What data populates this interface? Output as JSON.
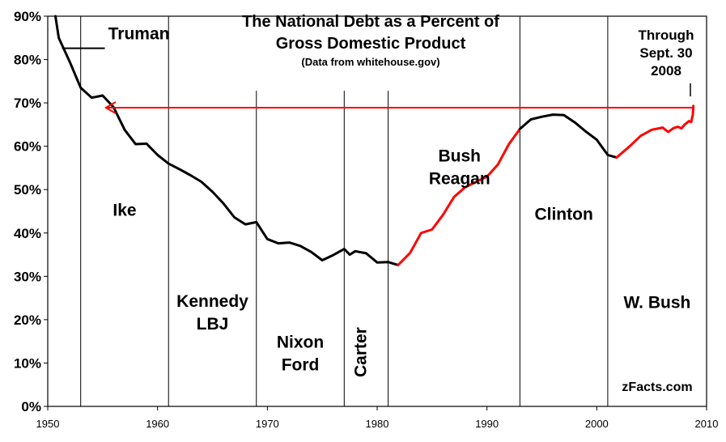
{
  "chart_data": {
    "type": "line",
    "title_lines": [
      "The National Debt as a Percent of",
      "Gross Domestic Product"
    ],
    "subtitle": "(Data from whitehouse.gov)",
    "xlim": [
      1950,
      2010
    ],
    "ylim": [
      0,
      90
    ],
    "x_ticks": [
      1950,
      1960,
      1970,
      1980,
      1990,
      2000,
      2010
    ],
    "y_ticks": [
      0,
      10,
      20,
      30,
      40,
      50,
      60,
      70,
      80,
      90
    ],
    "y_tick_labels": [
      "0%",
      "10%",
      "20%",
      "30%",
      "40%",
      "50%",
      "60%",
      "70%",
      "80%",
      "90%"
    ],
    "term_boundaries": [
      1953,
      1961,
      1969,
      1977,
      1981,
      1993,
      2001
    ],
    "series": [
      {
        "color": "#000000",
        "points": [
          [
            1950.7,
            90.0
          ],
          [
            1951,
            85.0
          ],
          [
            1952,
            79.5
          ],
          [
            1953,
            73.5
          ],
          [
            1954,
            71.2
          ],
          [
            1955,
            71.7
          ],
          [
            1956,
            69.0
          ],
          [
            1957,
            63.8
          ],
          [
            1958,
            60.5
          ],
          [
            1959,
            60.6
          ],
          [
            1960,
            58.0
          ],
          [
            1961,
            56.0
          ],
          [
            1962,
            54.7
          ],
          [
            1963,
            53.3
          ],
          [
            1964,
            51.8
          ],
          [
            1965,
            49.5
          ],
          [
            1966,
            46.8
          ],
          [
            1967,
            43.6
          ],
          [
            1968,
            42.0
          ],
          [
            1969,
            42.5
          ],
          [
            1970,
            38.6
          ],
          [
            1971,
            37.6
          ],
          [
            1972,
            37.8
          ],
          [
            1973,
            37.0
          ],
          [
            1974,
            35.6
          ],
          [
            1975,
            33.7
          ],
          [
            1976,
            34.9
          ],
          [
            1977,
            36.3
          ],
          [
            1977.5,
            35.0
          ],
          [
            1978,
            35.8
          ],
          [
            1979,
            35.3
          ],
          [
            1980,
            33.2
          ],
          [
            1981,
            33.3
          ],
          [
            1981.9,
            32.6
          ]
        ]
      },
      {
        "color": "#ff0000",
        "points": [
          [
            1981.9,
            32.6
          ],
          [
            1983,
            35.4
          ],
          [
            1984,
            40.0
          ],
          [
            1985,
            40.8
          ],
          [
            1986,
            44.2
          ],
          [
            1987,
            48.3
          ],
          [
            1988,
            50.5
          ],
          [
            1989,
            51.8
          ],
          [
            1990,
            53.0
          ],
          [
            1991,
            55.8
          ],
          [
            1992,
            60.5
          ],
          [
            1993,
            64.0
          ]
        ]
      },
      {
        "color": "#000000",
        "points": [
          [
            1993,
            64.0
          ],
          [
            1994,
            66.2
          ],
          [
            1995,
            66.8
          ],
          [
            1996,
            67.3
          ],
          [
            1997,
            67.2
          ],
          [
            1998,
            65.5
          ],
          [
            1999,
            63.4
          ],
          [
            2000,
            61.5
          ],
          [
            2001,
            58.0
          ],
          [
            2001.8,
            57.4
          ]
        ]
      },
      {
        "color": "#ff0000",
        "points": [
          [
            2001.8,
            57.4
          ],
          [
            2003,
            60.0
          ],
          [
            2004,
            62.4
          ],
          [
            2005,
            63.8
          ],
          [
            2006,
            64.3
          ],
          [
            2006.5,
            63.3
          ],
          [
            2007,
            64.2
          ],
          [
            2007.4,
            64.5
          ],
          [
            2007.7,
            64.1
          ],
          [
            2008,
            65.0
          ],
          [
            2008.4,
            65.8
          ],
          [
            2008.6,
            65.6
          ],
          [
            2008.75,
            67.3
          ],
          [
            2008.8,
            69.3
          ]
        ]
      }
    ],
    "reference_arrow": {
      "from_x": 2008.8,
      "to_x": 1955.3,
      "y": 68.9,
      "color": "#ff0000"
    },
    "president_labels": [
      {
        "id": "truman",
        "lines": [
          "Truman"
        ],
        "x": 1955.5,
        "y": 84.7
      },
      {
        "id": "ike",
        "lines": [
          "Ike"
        ],
        "x": 1957.0,
        "y": 44.0
      },
      {
        "id": "kennedy-lbj",
        "lines": [
          "Kennedy",
          "LBJ"
        ],
        "x": 1965.0,
        "y": 23.0
      },
      {
        "id": "nixon-ford",
        "lines": [
          "Nixon",
          "Ford"
        ],
        "x": 1973.0,
        "y": 13.5
      },
      {
        "id": "bush-reagan",
        "lines": [
          "Bush",
          "Reagan"
        ],
        "x": 1987.5,
        "y": 56.5
      },
      {
        "id": "clinton",
        "lines": [
          "Clinton"
        ],
        "x": 1997.0,
        "y": 43.0
      },
      {
        "id": "w-bush",
        "lines": [
          "W. Bush"
        ],
        "x": 2005.5,
        "y": 22.7
      }
    ],
    "vertical_president_label": {
      "id": "carter",
      "text": "Carter",
      "x": 1979.0,
      "y": 12.5
    },
    "through_note": [
      "Through",
      "Sept. 30",
      "2008"
    ],
    "watermark": "zFacts.com",
    "grid": false
  }
}
